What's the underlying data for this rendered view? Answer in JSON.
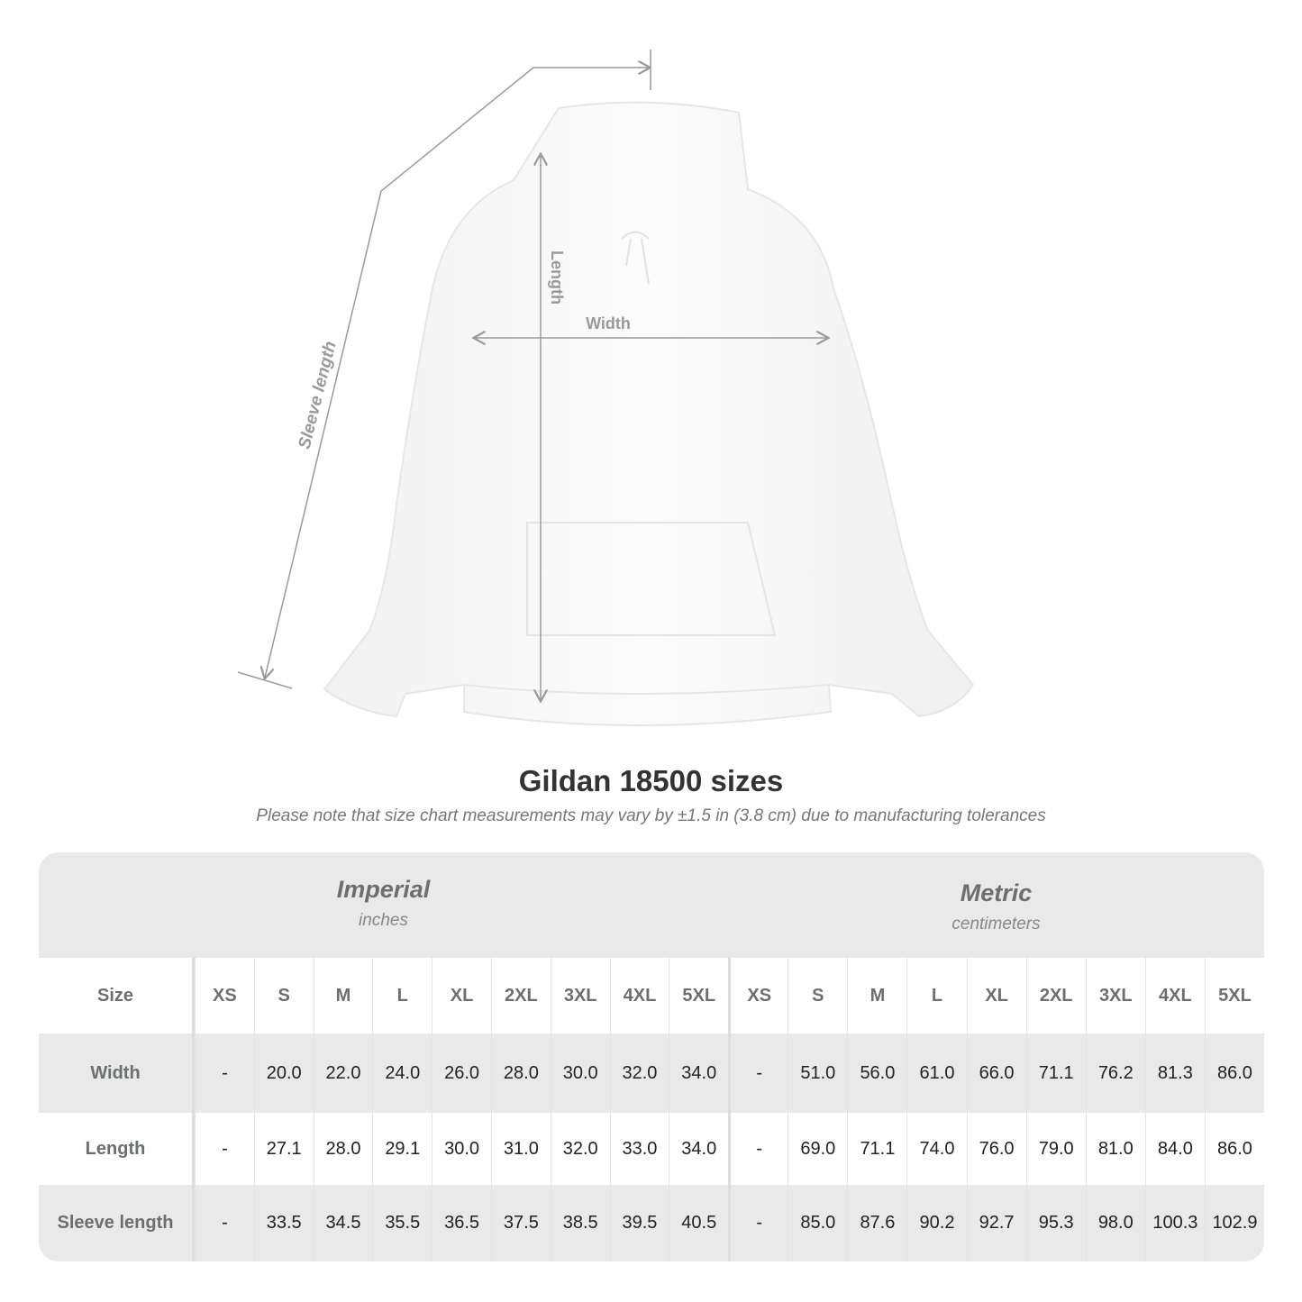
{
  "illustration": {
    "labels": {
      "length": "Length",
      "width": "Width",
      "sleeve": "Sleeve length"
    },
    "garment_color": "#ffffff",
    "line_color": "#9a9a9a"
  },
  "title": "Gildan 18500 sizes",
  "note": "Please note that size chart measurements may vary by ±1.5 in (3.8 cm) due to manufacturing tolerances",
  "table": {
    "systems": [
      {
        "name": "Imperial",
        "unit": "inches"
      },
      {
        "name": "Metric",
        "unit": "centimeters"
      }
    ],
    "size_label": "Size",
    "sizes": [
      "XS",
      "S",
      "M",
      "L",
      "XL",
      "2XL",
      "3XL",
      "4XL",
      "5XL"
    ],
    "rows": [
      {
        "label": "Width",
        "imperial": [
          "-",
          "20.0",
          "22.0",
          "24.0",
          "26.0",
          "28.0",
          "30.0",
          "32.0",
          "34.0"
        ],
        "metric": [
          "-",
          "51.0",
          "56.0",
          "61.0",
          "66.0",
          "71.1",
          "76.2",
          "81.3",
          "86.0"
        ]
      },
      {
        "label": "Length",
        "imperial": [
          "-",
          "27.1",
          "28.0",
          "29.1",
          "30.0",
          "31.0",
          "32.0",
          "33.0",
          "34.0"
        ],
        "metric": [
          "-",
          "69.0",
          "71.1",
          "74.0",
          "76.0",
          "79.0",
          "81.0",
          "84.0",
          "86.0"
        ]
      },
      {
        "label": "Sleeve length",
        "imperial": [
          "-",
          "33.5",
          "34.5",
          "35.5",
          "36.5",
          "37.5",
          "38.5",
          "39.5",
          "40.5"
        ],
        "metric": [
          "-",
          "85.0",
          "87.6",
          "90.2",
          "92.7",
          "95.3",
          "98.0",
          "100.3",
          "102.9"
        ]
      }
    ]
  }
}
